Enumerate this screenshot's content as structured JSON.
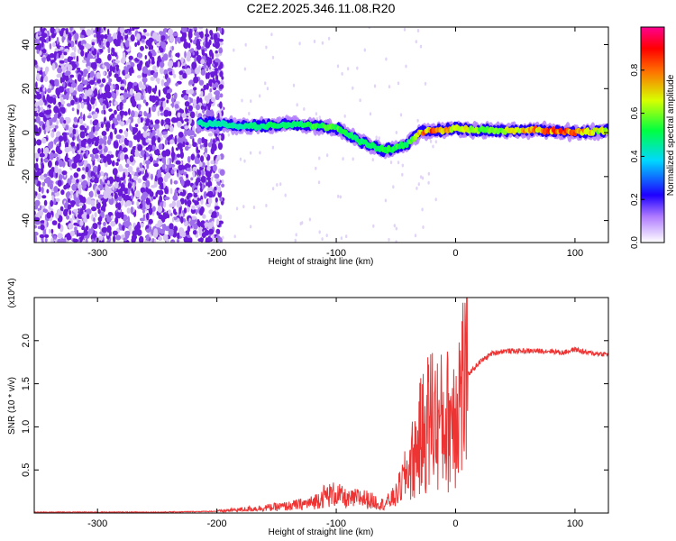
{
  "chart_data": [
    {
      "type": "heatmap",
      "title": "C2E2.2025.346.11.08.R20",
      "xlabel": "Height of straight line (km)",
      "ylabel": "Frequency (Hz)",
      "xlim": [
        -353,
        128
      ],
      "ylim": [
        -50,
        48
      ],
      "xticks": [
        -300,
        -200,
        -100,
        0,
        100
      ],
      "xtick_labels": [
        "-300",
        "-200",
        "-100",
        "0",
        "100"
      ],
      "yticks": [
        -40,
        -20,
        0,
        20,
        40
      ],
      "ytick_labels": [
        "-40",
        "-20",
        "0",
        "20",
        "40"
      ],
      "colorbar": {
        "label": "Normalized spectral amplitude",
        "range": [
          0,
          1
        ],
        "ticks": [
          0.0,
          0.2,
          0.4,
          0.6,
          0.8
        ],
        "tick_labels": [
          "0.0",
          "0.2",
          "0.4",
          "0.6",
          "0.8"
        ]
      },
      "ridge": {
        "x": [
          -215,
          -200,
          -180,
          -160,
          -140,
          -120,
          -100,
          -90,
          -80,
          -70,
          -60,
          -50,
          -40,
          -30,
          -20,
          -10,
          0,
          20,
          40,
          60,
          80,
          100,
          128
        ],
        "freq": [
          4,
          4,
          3,
          3,
          4,
          3,
          2,
          -1,
          -4,
          -6,
          -8,
          -7,
          -5,
          0,
          1,
          1,
          2,
          1,
          1,
          1,
          1,
          0,
          1
        ],
        "amplitude": [
          0.45,
          0.45,
          0.45,
          0.5,
          0.5,
          0.55,
          0.55,
          0.55,
          0.5,
          0.5,
          0.55,
          0.55,
          0.5,
          0.75,
          0.85,
          0.8,
          0.7,
          0.6,
          0.65,
          0.75,
          0.85,
          0.8,
          0.6
        ]
      },
      "noise_region_x": [
        -353,
        -195
      ]
    },
    {
      "type": "line",
      "xlabel": "Height of straight line (km)",
      "ylabel": "SNR (10 * v/v)",
      "y_multiplier": "(x10^4)",
      "xlim": [
        -353,
        128
      ],
      "ylim": [
        0,
        2.5
      ],
      "xticks": [
        -300,
        -200,
        -100,
        0,
        100
      ],
      "xtick_labels": [
        "-300",
        "-200",
        "-100",
        "0",
        "100"
      ],
      "yticks": [
        0.5,
        1.0,
        1.5,
        2.0
      ],
      "ytick_labels": [
        "0.5",
        "1.0",
        "1.5",
        "2.0"
      ],
      "series": [
        {
          "name": "SNR",
          "color": "#ee3333",
          "x": [
            -353,
            -300,
            -250,
            -200,
            -180,
            -160,
            -140,
            -120,
            -110,
            -100,
            -90,
            -80,
            -70,
            -60,
            -50,
            -45,
            -40,
            -35,
            -30,
            -25,
            -20,
            -15,
            -10,
            -5,
            0,
            5,
            10,
            20,
            30,
            40,
            60,
            80,
            90,
            100,
            110,
            128
          ],
          "y": [
            0.01,
            0.01,
            0.01,
            0.02,
            0.04,
            0.06,
            0.08,
            0.12,
            0.2,
            0.22,
            0.15,
            0.18,
            0.14,
            0.1,
            0.2,
            0.35,
            0.5,
            0.65,
            0.85,
            1.0,
            1.15,
            1.05,
            1.05,
            1.1,
            1.25,
            1.45,
            1.6,
            1.75,
            1.85,
            1.88,
            1.88,
            1.88,
            1.86,
            1.9,
            1.86,
            1.84
          ]
        }
      ]
    }
  ],
  "colors": {
    "line": "#ee3333",
    "axis": "#000000",
    "noise_dark": "#6a1bd8",
    "noise_light": "#d8c4f4"
  }
}
